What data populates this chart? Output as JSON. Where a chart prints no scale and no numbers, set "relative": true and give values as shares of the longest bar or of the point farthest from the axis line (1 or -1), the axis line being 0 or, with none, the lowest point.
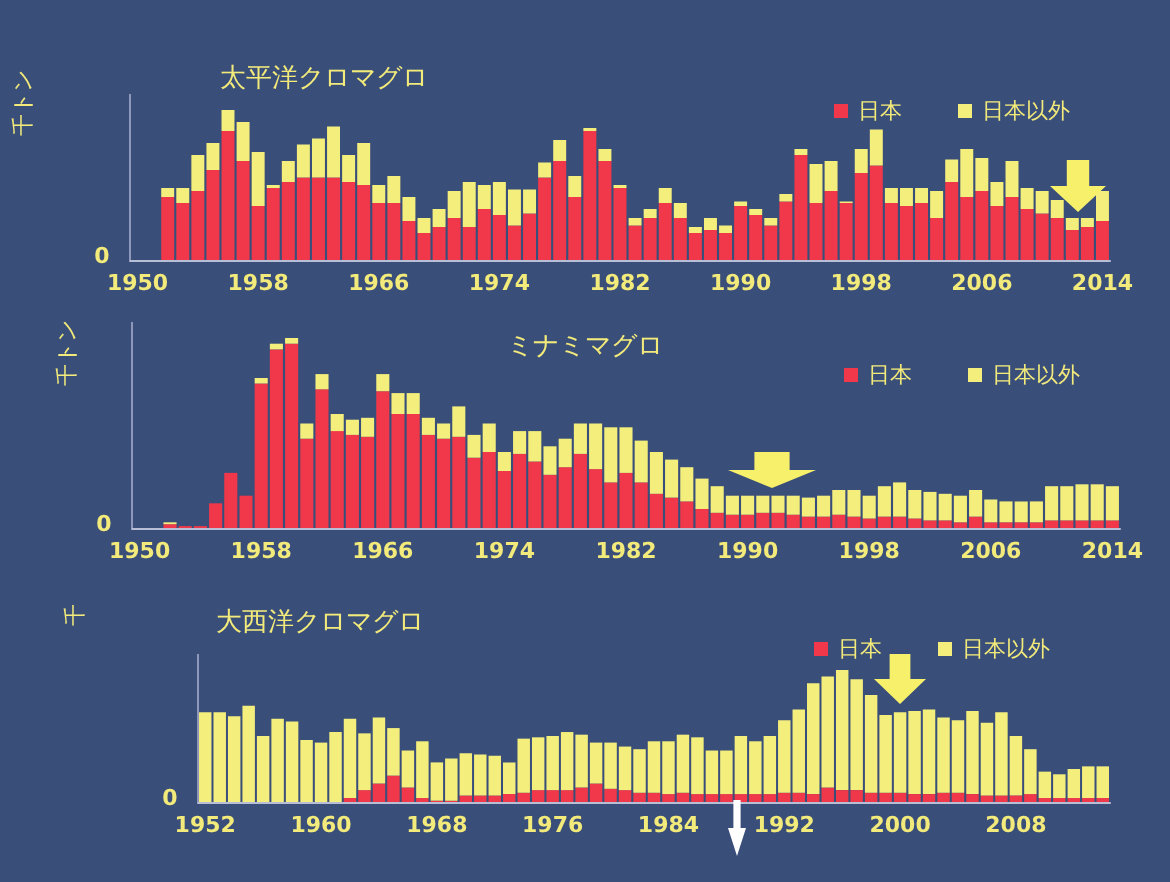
{
  "chart_data": [
    {
      "type": "bar",
      "title": "太平洋クロマグロ",
      "ylabel": "千トン",
      "stacked": true,
      "relative": true,
      "legend": "top right",
      "annotations": [
        "0"
      ],
      "categories": [
        "1950",
        null,
        null,
        null,
        null,
        null,
        null,
        null,
        "1958",
        null,
        null,
        null,
        null,
        null,
        null,
        null,
        "1966",
        null,
        null,
        null,
        null,
        null,
        null,
        null,
        "1974",
        null,
        null,
        null,
        null,
        null,
        null,
        null,
        "1982",
        null,
        null,
        null,
        null,
        null,
        null,
        null,
        "1990",
        null,
        null,
        null,
        null,
        null,
        null,
        null,
        "1998",
        null,
        null,
        null,
        null,
        null,
        null,
        null,
        "2006",
        null,
        null,
        null,
        null,
        null,
        null,
        null,
        "2014"
      ],
      "series": [
        {
          "name": "日本",
          "color": "#f0384a",
          "values": [
            null,
            null,
            0.42,
            0.38,
            0.46,
            0.6,
            0.86,
            0.66,
            0.36,
            0.48,
            0.52,
            0.55,
            0.55,
            0.55,
            0.52,
            0.5,
            0.38,
            0.38,
            0.26,
            0.18,
            0.22,
            0.28,
            0.22,
            0.34,
            0.3,
            0.23,
            0.31,
            0.55,
            0.66,
            0.42,
            0.86,
            0.66,
            0.48,
            0.23,
            0.28,
            0.38,
            0.28,
            0.18,
            0.2,
            0.18,
            0.36,
            0.3,
            0.23,
            0.39,
            0.7,
            0.38,
            0.46,
            0.38,
            0.58,
            0.63,
            0.38,
            0.36,
            0.38,
            0.28,
            0.52,
            0.42,
            0.46,
            0.36,
            0.42,
            0.34,
            0.31,
            0.28,
            0.2,
            0.22,
            0.26
          ]
        },
        {
          "name": "日本以外",
          "color": "#f4ef7c",
          "values": [
            null,
            null,
            0.06,
            0.1,
            0.24,
            0.18,
            0.14,
            0.26,
            0.36,
            0.02,
            0.14,
            0.22,
            0.26,
            0.34,
            0.18,
            0.28,
            0.12,
            0.18,
            0.16,
            0.1,
            0.12,
            0.18,
            0.3,
            0.16,
            0.22,
            0.24,
            0.16,
            0.1,
            0.14,
            0.14,
            0.02,
            0.08,
            0.02,
            0.05,
            0.06,
            0.1,
            0.1,
            0.04,
            0.08,
            0.05,
            0.03,
            0.04,
            0.05,
            0.05,
            0.04,
            0.26,
            0.2,
            0.01,
            0.16,
            0.24,
            0.1,
            0.12,
            0.1,
            0.18,
            0.15,
            0.32,
            0.22,
            0.16,
            0.24,
            0.14,
            0.15,
            0.12,
            0.08,
            0.06,
            0.2
          ]
        }
      ]
    },
    {
      "type": "bar",
      "title": "ミナミマグロ",
      "ylabel": "千トン",
      "stacked": true,
      "relative": true,
      "legend": "top right",
      "annotations": [
        "0"
      ],
      "categories": [
        "1950",
        null,
        null,
        null,
        null,
        null,
        null,
        null,
        "1958",
        null,
        null,
        null,
        null,
        null,
        null,
        null,
        "1966",
        null,
        null,
        null,
        null,
        null,
        null,
        null,
        "1974",
        null,
        null,
        null,
        null,
        null,
        null,
        null,
        "1982",
        null,
        null,
        null,
        null,
        null,
        null,
        null,
        "1990",
        null,
        null,
        null,
        null,
        null,
        null,
        null,
        "1998",
        null,
        null,
        null,
        null,
        null,
        null,
        null,
        "2006",
        null,
        null,
        null,
        null,
        null,
        null,
        null,
        "2014"
      ],
      "series": [
        {
          "name": "日本",
          "color": "#f0384a",
          "values": [
            null,
            null,
            0.02,
            0.01,
            0.01,
            0.13,
            0.29,
            0.17,
            0.76,
            0.94,
            0.97,
            0.47,
            0.73,
            0.51,
            0.49,
            0.48,
            0.72,
            0.6,
            0.6,
            0.49,
            0.47,
            0.48,
            0.37,
            0.4,
            0.3,
            0.39,
            0.35,
            0.28,
            0.32,
            0.39,
            0.31,
            0.24,
            0.29,
            0.24,
            0.18,
            0.16,
            0.14,
            0.1,
            0.08,
            0.07,
            0.07,
            0.08,
            0.08,
            0.07,
            0.06,
            0.06,
            0.07,
            0.06,
            0.05,
            0.06,
            0.06,
            0.05,
            0.04,
            0.04,
            0.03,
            0.06,
            0.03,
            0.03,
            0.03,
            0.03,
            0.04,
            0.04,
            0.04,
            0.04,
            0.04
          ]
        },
        {
          "name": "日本以外",
          "color": "#f4ef7c",
          "values": [
            null,
            null,
            0.01,
            0,
            0,
            0,
            0,
            0,
            0.03,
            0.03,
            0.03,
            0.08,
            0.08,
            0.09,
            0.08,
            0.1,
            0.09,
            0.11,
            0.11,
            0.09,
            0.08,
            0.16,
            0.12,
            0.15,
            0.1,
            0.12,
            0.16,
            0.15,
            0.15,
            0.16,
            0.24,
            0.29,
            0.24,
            0.22,
            0.22,
            0.2,
            0.18,
            0.16,
            0.14,
            0.1,
            0.1,
            0.09,
            0.09,
            0.1,
            0.1,
            0.11,
            0.13,
            0.14,
            0.12,
            0.16,
            0.18,
            0.15,
            0.15,
            0.14,
            0.14,
            0.14,
            0.12,
            0.11,
            0.11,
            0.11,
            0.18,
            0.18,
            0.19,
            0.19,
            0.18
          ]
        }
      ]
    },
    {
      "type": "bar",
      "title": "大西洋クロマグロ",
      "ylabel": "千",
      "stacked": true,
      "relative": true,
      "legend": "top right",
      "annotations": [
        "0"
      ],
      "categories": [
        "1952",
        null,
        null,
        null,
        null,
        null,
        null,
        null,
        "1960",
        null,
        null,
        null,
        null,
        null,
        null,
        null,
        "1968",
        null,
        null,
        null,
        null,
        null,
        null,
        null,
        "1976",
        null,
        null,
        null,
        null,
        null,
        null,
        null,
        "1984",
        null,
        null,
        null,
        null,
        null,
        null,
        null,
        "1992",
        null,
        null,
        null,
        null,
        null,
        null,
        null,
        "2000",
        null,
        null,
        null,
        null,
        null,
        null,
        null,
        "2008",
        null,
        null,
        null,
        null,
        null,
        null
      ],
      "series": [
        {
          "name": "日本",
          "color": "#f0384a",
          "values": [
            0,
            0,
            0,
            0,
            0,
            0,
            0,
            0,
            0,
            0,
            0.03,
            0.09,
            0.14,
            0.2,
            0.11,
            0.03,
            0.01,
            0.01,
            0.05,
            0.05,
            0.05,
            0.06,
            0.07,
            0.09,
            0.09,
            0.09,
            0.11,
            0.14,
            0.1,
            0.09,
            0.07,
            0.07,
            0.06,
            0.07,
            0.06,
            0.06,
            0.06,
            0.06,
            0.06,
            0.06,
            0.07,
            0.07,
            0.06,
            0.11,
            0.09,
            0.09,
            0.07,
            0.07,
            0.07,
            0.06,
            0.06,
            0.07,
            0.07,
            0.06,
            0.05,
            0.05,
            0.05,
            0.06,
            0.03,
            0.03,
            0.03,
            0.03,
            0.03
          ]
        },
        {
          "name": "日本以外",
          "color": "#f4ef7c",
          "values": [
            0.68,
            0.68,
            0.65,
            0.73,
            0.5,
            0.63,
            0.61,
            0.47,
            0.45,
            0.53,
            0.6,
            0.43,
            0.5,
            0.36,
            0.28,
            0.43,
            0.29,
            0.32,
            0.32,
            0.31,
            0.3,
            0.24,
            0.41,
            0.4,
            0.41,
            0.44,
            0.4,
            0.31,
            0.35,
            0.33,
            0.33,
            0.39,
            0.4,
            0.44,
            0.43,
            0.33,
            0.33,
            0.44,
            0.4,
            0.44,
            0.55,
            0.63,
            0.84,
            0.84,
            0.91,
            0.84,
            0.74,
            0.59,
            0.61,
            0.63,
            0.64,
            0.57,
            0.55,
            0.63,
            0.55,
            0.63,
            0.45,
            0.34,
            0.2,
            0.18,
            0.22,
            0.24,
            0.24
          ]
        }
      ]
    }
  ]
}
